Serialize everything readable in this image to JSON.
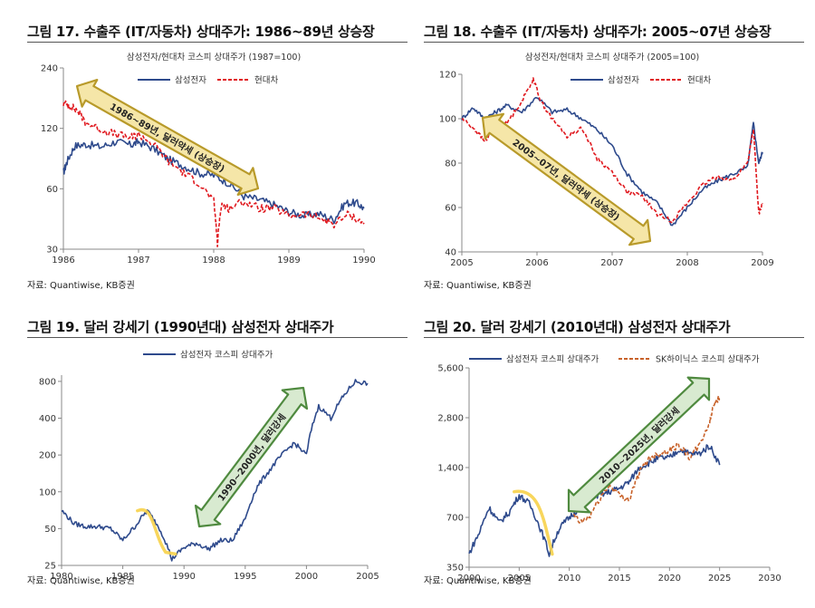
{
  "colors": {
    "samsung": "#2e4a8c",
    "hyundai": "#e0191f",
    "skhynix": "#c8622a",
    "arrow_fill": "#f5e6a8",
    "arrow_fill_green": "#d8ead0",
    "arrow_gold": "#b89a2a",
    "arrow_green": "#4f8a3f",
    "highlight_yellow": "#f7d14a",
    "axis": "#888888"
  },
  "panels": [
    {
      "title": "그림 17. 수출주 (IT/자동차) 상대주가: 1986~89년 상승장",
      "source": "자료: Quantiwise, KB증권"
    },
    {
      "title": "그림 18. 수출주 (IT/자동차) 상대주가: 2005~07년 상승장",
      "source": "자료: Quantiwise, KB증권"
    },
    {
      "title": "그림 19. 달러 강세기 (1990년대) 삼성전자 상대주가",
      "source": "자료: Quantiwise, KB증권"
    },
    {
      "title": "그림 20. 달러 강세기 (2010년대) 삼성전자 상대주가",
      "source": "자료: Quantiwise, KB증권"
    }
  ],
  "chart_data": [
    {
      "type": "line",
      "title": "삼성전자/현대차 코스피 상대주가 (1987=100)",
      "y_scale": "log",
      "ylim": [
        30,
        240
      ],
      "yticks": [
        30,
        60,
        120,
        240
      ],
      "xlim": [
        1986,
        1990
      ],
      "xticks": [
        1986,
        1987,
        1988,
        1989,
        1990
      ],
      "annotation": "1986~89년, 달러약세 (상승장)",
      "series": [
        {
          "name": "삼성전자",
          "style": "solid",
          "x": [
            1986.0,
            1986.05,
            1986.15,
            1986.3,
            1986.5,
            1986.7,
            1986.9,
            1987.0,
            1987.2,
            1987.4,
            1987.6,
            1987.8,
            1988.0,
            1988.2,
            1988.4,
            1988.6,
            1988.8,
            1989.0,
            1989.2,
            1989.4,
            1989.6,
            1989.75,
            1989.9,
            1990.0
          ],
          "y": [
            72,
            82,
            98,
            100,
            97,
            103,
            99,
            103,
            95,
            84,
            78,
            72,
            70,
            64,
            55,
            53,
            50,
            46,
            44,
            45,
            42,
            51,
            51,
            48
          ]
        },
        {
          "name": "현대차",
          "style": "dashed",
          "x": [
            1986.0,
            1986.1,
            1986.2,
            1986.3,
            1986.5,
            1986.7,
            1986.9,
            1987.0,
            1987.2,
            1987.4,
            1987.6,
            1987.8,
            1988.0,
            1988.05,
            1988.1,
            1988.2,
            1988.4,
            1988.6,
            1988.8,
            1989.0,
            1989.2,
            1989.4,
            1989.6,
            1989.8,
            1990.0
          ],
          "y": [
            160,
            155,
            145,
            128,
            118,
            112,
            108,
            112,
            100,
            82,
            72,
            64,
            52,
            32,
            50,
            48,
            52,
            48,
            48,
            44,
            45,
            43,
            40,
            45,
            40
          ]
        }
      ]
    },
    {
      "type": "line",
      "title": "삼성전자/현대차 코스피 상대주가 (2005=100)",
      "ylim": [
        40,
        120
      ],
      "yticks": [
        40,
        60,
        80,
        100,
        120
      ],
      "xlim": [
        2005,
        2009
      ],
      "xticks": [
        2005,
        2006,
        2007,
        2008,
        2009
      ],
      "annotation": "2005~07년, 달러약세 (상승장)",
      "series": [
        {
          "name": "삼성전자",
          "style": "solid",
          "x": [
            2005.0,
            2005.15,
            2005.3,
            2005.45,
            2005.6,
            2005.8,
            2006.0,
            2006.2,
            2006.4,
            2006.6,
            2006.8,
            2007.0,
            2007.2,
            2007.4,
            2007.6,
            2007.8,
            2008.0,
            2008.2,
            2008.4,
            2008.6,
            2008.8,
            2008.88,
            2008.95,
            2009.0
          ],
          "y": [
            100,
            105,
            100,
            103,
            106,
            103,
            110,
            103,
            104,
            100,
            95,
            88,
            75,
            67,
            62,
            52,
            60,
            68,
            72,
            75,
            78,
            98,
            80,
            85
          ]
        },
        {
          "name": "현대차",
          "style": "dashed",
          "x": [
            2005.0,
            2005.15,
            2005.3,
            2005.45,
            2005.6,
            2005.8,
            2005.95,
            2006.05,
            2006.2,
            2006.4,
            2006.6,
            2006.8,
            2007.0,
            2007.2,
            2007.4,
            2007.6,
            2007.8,
            2008.0,
            2008.2,
            2008.4,
            2008.6,
            2008.8,
            2008.88,
            2008.95,
            2009.0
          ],
          "y": [
            100,
            96,
            90,
            95,
            98,
            108,
            118,
            108,
            100,
            92,
            96,
            82,
            76,
            67,
            65,
            57,
            54,
            62,
            70,
            74,
            72,
            80,
            95,
            57,
            62
          ]
        }
      ]
    },
    {
      "type": "line",
      "title": "",
      "y_scale": "log",
      "ylim": [
        25,
        900
      ],
      "yticks": [
        25,
        50,
        100,
        200,
        400,
        800
      ],
      "xlim": [
        1980,
        2005
      ],
      "xticks": [
        1980,
        1985,
        1990,
        1995,
        2000,
        2005
      ],
      "annotation": "1990~2000년, 달러강세",
      "series": [
        {
          "name": "삼성전자 코스피 상대주가",
          "style": "solid",
          "x": [
            1980,
            1981,
            1982,
            1983,
            1984,
            1985,
            1986,
            1987,
            1988,
            1989,
            1990,
            1991,
            1992,
            1993,
            1994,
            1995,
            1996,
            1997,
            1998,
            1999,
            2000,
            2001,
            2002,
            2003,
            2004,
            2005
          ],
          "y": [
            70,
            55,
            52,
            52,
            50,
            40,
            52,
            70,
            50,
            28,
            35,
            38,
            34,
            40,
            40,
            60,
            110,
            150,
            200,
            250,
            200,
            500,
            400,
            600,
            800,
            770
          ]
        }
      ]
    },
    {
      "type": "line",
      "title": "",
      "y_scale": "log",
      "ylim": [
        350,
        5600
      ],
      "yticks": [
        350,
        700,
        1400,
        2800,
        5600
      ],
      "yticklabels": [
        "350",
        "700",
        "1,400",
        "2,800",
        "5,600"
      ],
      "xlim": [
        2000,
        2030
      ],
      "xticks": [
        2000,
        2005,
        2010,
        2015,
        2020,
        2025,
        2030
      ],
      "annotation": "2010~2025년, 달러강세",
      "series": [
        {
          "name": "삼성전자 코스피 상대주가",
          "style": "solid",
          "x": [
            2000,
            2001,
            2002,
            2003,
            2004,
            2005,
            2006,
            2007,
            2008,
            2009,
            2010,
            2011,
            2012,
            2013,
            2014,
            2015,
            2016,
            2017,
            2018,
            2019,
            2020,
            2021,
            2022,
            2023,
            2024,
            2025
          ],
          "y": [
            420,
            560,
            800,
            650,
            750,
            950,
            850,
            620,
            420,
            600,
            700,
            800,
            950,
            950,
            1000,
            1050,
            1150,
            1400,
            1500,
            1600,
            1600,
            1800,
            1700,
            1700,
            1900,
            1450
          ]
        },
        {
          "name": "SK하이닉스 코스피 상대주가",
          "style": "dashed",
          "x": [
            2010,
            2011,
            2012,
            2013,
            2014,
            2015,
            2016,
            2017,
            2018,
            2019,
            2020,
            2021,
            2022,
            2023,
            2024,
            2024.5,
            2025
          ],
          "y": [
            800,
            650,
            700,
            900,
            1100,
            950,
            900,
            1300,
            1600,
            1700,
            1800,
            1900,
            1600,
            1900,
            2600,
            3500,
            3700
          ]
        }
      ]
    }
  ]
}
